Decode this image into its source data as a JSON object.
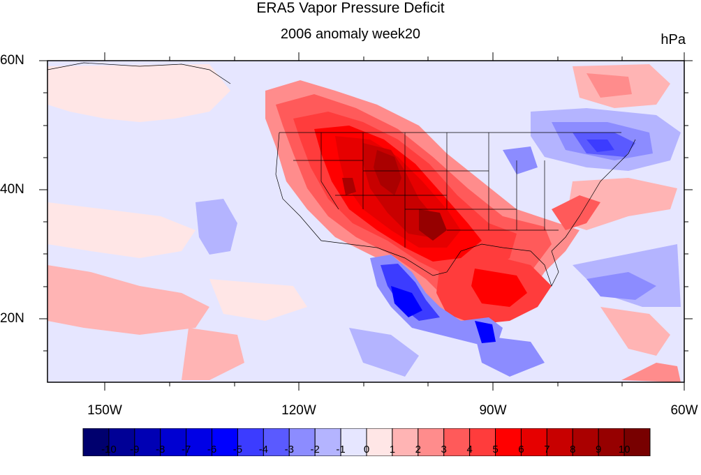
{
  "header": {
    "title": "ERA5 Vapor Pressure Deficit",
    "subtitle": "2006 anomaly week20",
    "units": "hPa"
  },
  "axes": {
    "lat_labels": [
      "60N",
      "40N",
      "20N"
    ],
    "lon_labels": [
      "150W",
      "120W",
      "90W",
      "60W"
    ]
  },
  "colorbar": {
    "colors": [
      "#00006e",
      "#000096",
      "#0000b4",
      "#0000d2",
      "#0000e6",
      "#0000ff",
      "#3c3cff",
      "#5a5aff",
      "#8c8cff",
      "#b4b4ff",
      "#e6e6ff",
      "#ffe6e6",
      "#ffb4b4",
      "#ff8c8c",
      "#ff5a5a",
      "#ff3c3c",
      "#ff0000",
      "#e60000",
      "#c80000",
      "#aa0000",
      "#960000",
      "#780000"
    ],
    "labels": [
      "-10",
      "-9",
      "-8",
      "-7",
      "-6",
      "-5",
      "-4",
      "-3",
      "-2",
      "-1",
      "0",
      "1",
      "2",
      "3",
      "4",
      "5",
      "6",
      "7",
      "8",
      "9",
      "10"
    ]
  }
}
